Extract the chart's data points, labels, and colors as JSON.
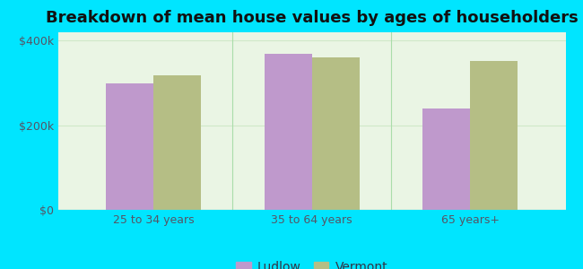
{
  "title": "Breakdown of mean house values by ages of householders",
  "categories": [
    "25 to 34 years",
    "35 to 64 years",
    "65 years+"
  ],
  "ludlow_values": [
    300000,
    370000,
    240000
  ],
  "vermont_values": [
    318000,
    360000,
    352000
  ],
  "ludlow_color": "#bf99cc",
  "vermont_color": "#b5be85",
  "background_outer": "#00e5ff",
  "background_inner": "#eaf5e4",
  "yticks": [
    0,
    200000,
    400000
  ],
  "ytick_labels": [
    "$0",
    "$200k",
    "$400k"
  ],
  "ylim": [
    0,
    420000
  ],
  "bar_width": 0.3,
  "legend_ludlow": "Ludlow",
  "legend_vermont": "Vermont",
  "title_fontsize": 13,
  "tick_fontsize": 9,
  "legend_fontsize": 10,
  "separator_color": "#aaddaa",
  "grid_color": "#d0e8c8"
}
